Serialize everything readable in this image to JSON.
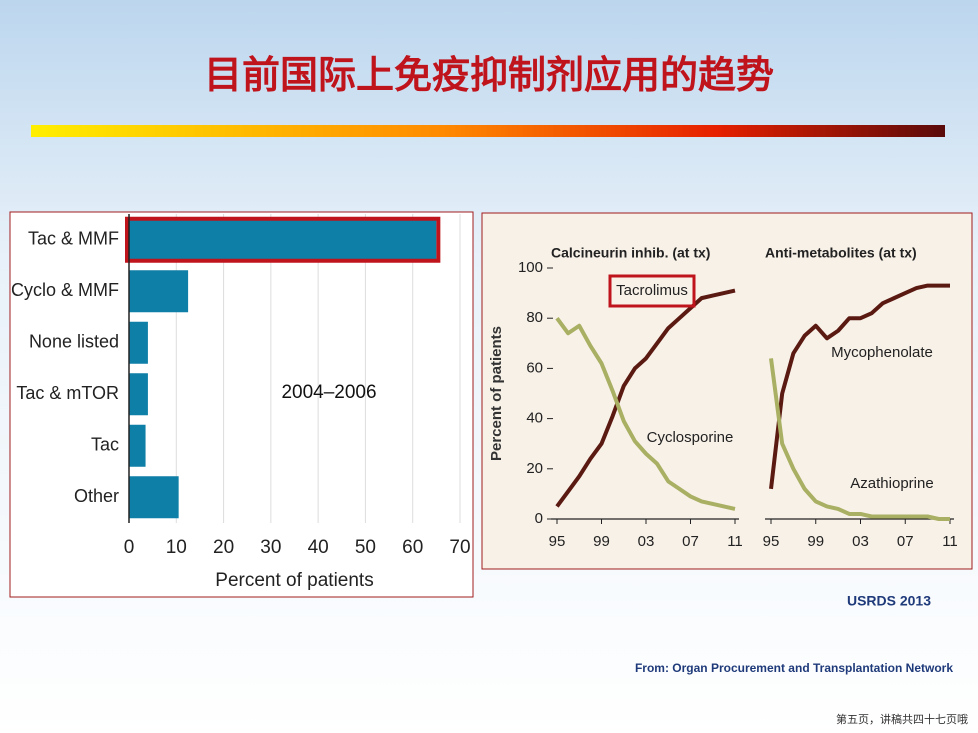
{
  "title": "目前国际上免疫抑制剂应用的趋势",
  "chart_data": [
    {
      "type": "bar",
      "orientation": "horizontal",
      "xlabel": "Percent of patients",
      "annotation": "2004–2006",
      "color": "#0e7fa6",
      "categories": [
        "Tac & MMF",
        "Cyclo & MMF",
        "None listed",
        "Tac & mTOR",
        "Tac",
        "Other"
      ],
      "values": [
        65,
        12.5,
        4,
        4,
        3.5,
        10.5
      ],
      "xlim": [
        0,
        70
      ],
      "xticks": [
        0,
        10,
        20,
        30,
        40,
        50,
        60,
        70
      ],
      "grid": true
    },
    {
      "type": "line",
      "title": "Calcineurin inhib. (at tx)",
      "ylabel": "Percent of patients",
      "x": [
        1995,
        1996,
        1997,
        1998,
        1999,
        2000,
        2001,
        2002,
        2003,
        2004,
        2005,
        2006,
        2007,
        2008,
        2009,
        2010,
        2011
      ],
      "xlim": [
        1995,
        2011
      ],
      "xticks": [
        {
          "value": 1995,
          "label": "95"
        },
        {
          "value": 1999,
          "label": "99"
        },
        {
          "value": 2003,
          "label": "03"
        },
        {
          "value": 2007,
          "label": "07"
        },
        {
          "value": 2011,
          "label": "11"
        }
      ],
      "ylim": [
        0,
        100
      ],
      "yticks": [
        0,
        20,
        40,
        60,
        80,
        100
      ],
      "series": [
        {
          "name": "Tacrolimus",
          "color": "#5a1a12",
          "values": [
            5,
            11,
            17,
            24,
            30,
            41,
            53,
            60,
            64,
            70,
            76,
            80,
            84,
            88,
            89,
            90,
            91
          ]
        },
        {
          "name": "Cyclosporine",
          "color": "#a9b063",
          "values": [
            80,
            74,
            77,
            69,
            62,
            51,
            39,
            31,
            26,
            22,
            15,
            12,
            9,
            7,
            6,
            5,
            4
          ]
        }
      ]
    },
    {
      "type": "line",
      "title": "Anti-metabolites (at tx)",
      "x": [
        1995,
        1996,
        1997,
        1998,
        1999,
        2000,
        2001,
        2002,
        2003,
        2004,
        2005,
        2006,
        2007,
        2008,
        2009,
        2010,
        2011
      ],
      "xlim": [
        1995,
        2011
      ],
      "xticks": [
        {
          "value": 1995,
          "label": "95"
        },
        {
          "value": 1999,
          "label": "99"
        },
        {
          "value": 2003,
          "label": "03"
        },
        {
          "value": 2007,
          "label": "07"
        },
        {
          "value": 2011,
          "label": "11"
        }
      ],
      "ylim": [
        0,
        100
      ],
      "series": [
        {
          "name": "Mycophenolate",
          "color": "#5a1a12",
          "values": [
            12,
            50,
            66,
            73,
            77,
            72,
            75,
            80,
            80,
            82,
            86,
            88,
            90,
            92,
            93,
            93,
            93
          ]
        },
        {
          "name": "Azathioprine",
          "color": "#a9b063",
          "values": [
            64,
            30,
            20,
            12,
            7,
            5,
            4,
            2,
            2,
            1,
            1,
            1,
            1,
            1,
            1,
            0,
            0
          ]
        }
      ]
    }
  ],
  "source": "USRDS 2013",
  "credit": "From: Organ Procurement and Transplantation Network",
  "page_note": "第五页，讲稿共四十七页哦"
}
